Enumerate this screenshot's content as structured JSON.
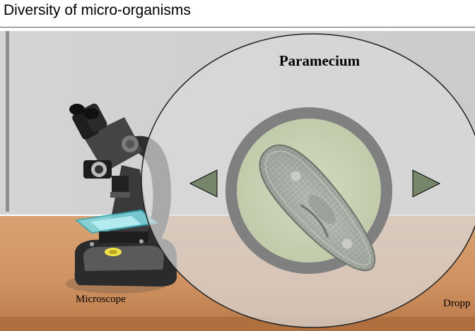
{
  "header": {
    "title": "Diversity of micro-organisms"
  },
  "specimen": {
    "name": "Paramecium"
  },
  "labels": {
    "microscope": "Microscope",
    "dropper": "Dropp"
  },
  "navigation": {
    "prev_icon": "triangle-left-icon",
    "next_icon": "triangle-right-icon"
  },
  "colors": {
    "wall": "#d0d0d0",
    "table": "#d39868",
    "lens_ring": "#7f7f7f",
    "view_field": "#c8d2b6",
    "nav_arrow": "#75866a"
  }
}
